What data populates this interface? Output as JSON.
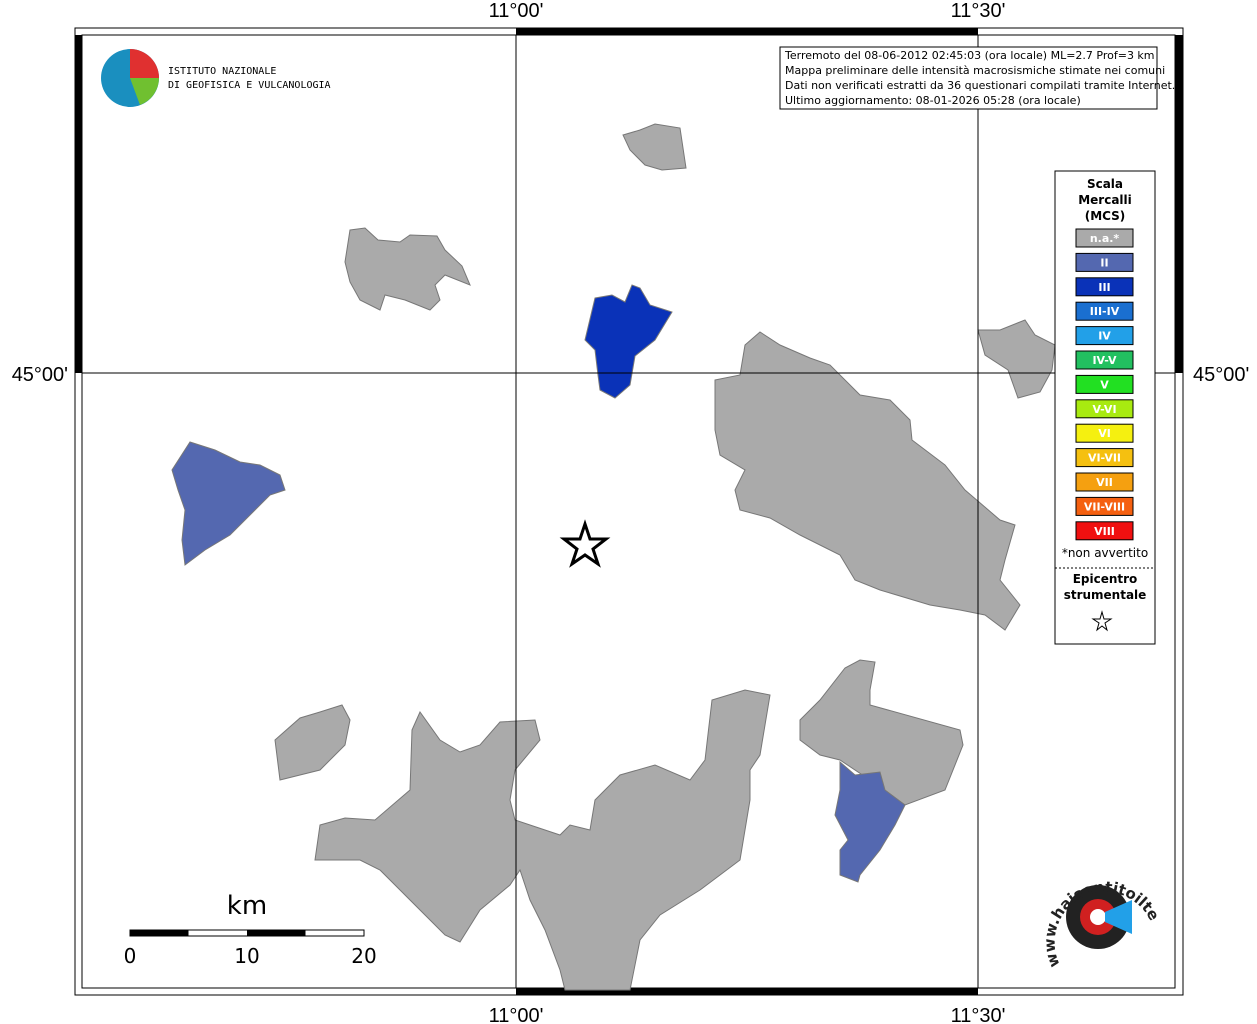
{
  "graticule": {
    "lon": [
      "11°00'",
      "11°30'"
    ],
    "lat": [
      "45°00'"
    ]
  },
  "logo": {
    "line1": "ISTITUTO NAZIONALE",
    "line2": "DI GEOFISICA E VULCANOLOGIA"
  },
  "info": [
    "Terremoto del 08-06-2012 02:45:03 (ora locale) ML=2.7 Prof=3 km",
    "Mappa preliminare delle intensità macrosismiche stimate nei comuni",
    "Dati non verificati estratti da 36 questionari compilati tramite Internet.",
    "Ultimo aggiornamento: 08-01-2026 05:28 (ora locale)"
  ],
  "legend": {
    "title": [
      "Scala",
      "Mercalli",
      "(MCS)"
    ],
    "items": [
      {
        "label": "n.a.*",
        "color": "#aaaaaa"
      },
      {
        "label": "II",
        "color": "#5468b0"
      },
      {
        "label": "III",
        "color": "#0a32b8"
      },
      {
        "label": "III-IV",
        "color": "#1a6fd0"
      },
      {
        "label": "IV",
        "color": "#22a0e8"
      },
      {
        "label": "IV-V",
        "color": "#22c060"
      },
      {
        "label": "V",
        "color": "#22e022"
      },
      {
        "label": "V-VI",
        "color": "#a8ea10"
      },
      {
        "label": "VI",
        "color": "#f5f010"
      },
      {
        "label": "VI-VII",
        "color": "#f5c010"
      },
      {
        "label": "VII",
        "color": "#f5a010"
      },
      {
        "label": "VII-VIII",
        "color": "#f56010"
      },
      {
        "label": "VIII",
        "color": "#f01010"
      }
    ],
    "note": "*non avvertito",
    "epicentre": [
      "Epicentro",
      "strumentale"
    ]
  },
  "scalebar": {
    "unit": "km",
    "ticks": [
      0,
      10,
      20
    ]
  },
  "site": "www.haisentitoilterremoto.it"
}
